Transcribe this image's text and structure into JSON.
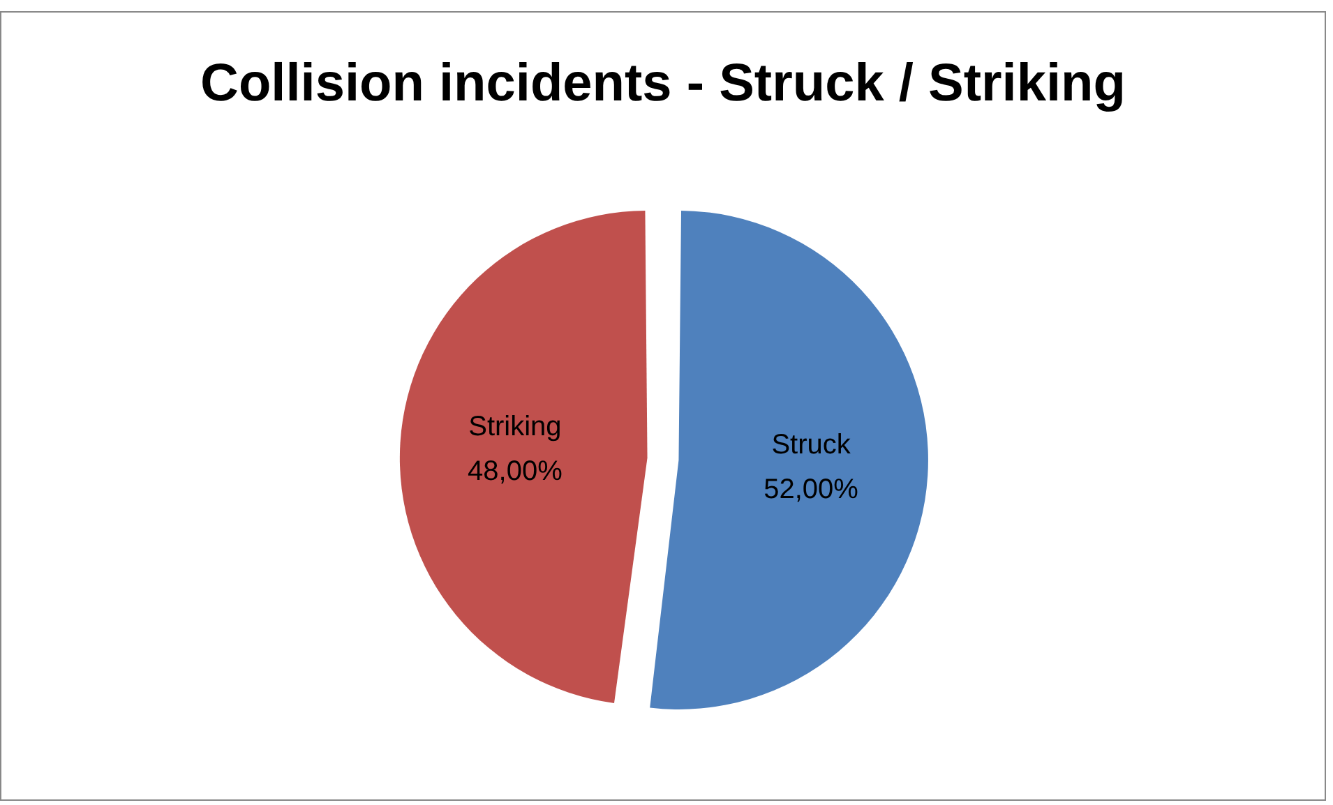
{
  "chart_data": {
    "type": "pie",
    "title": "Collision incidents - Struck / Striking",
    "categories": [
      "Struck",
      "Striking"
    ],
    "values": [
      52,
      48
    ],
    "colors": [
      "#4f81bd",
      "#c0504d"
    ],
    "value_labels": [
      "52,00%",
      "48,00%"
    ],
    "legend": false
  }
}
